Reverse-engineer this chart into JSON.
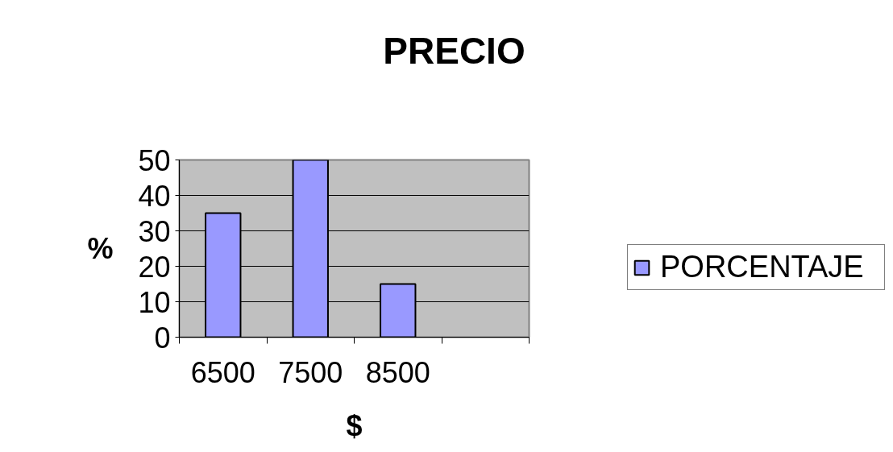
{
  "chart_data": {
    "type": "bar",
    "title": "PRECIO",
    "xlabel": "$",
    "ylabel": "%",
    "categories": [
      "6500",
      "7500",
      "8500",
      null
    ],
    "series": [
      {
        "name": "PORCENTAJE",
        "color": "#9999ff",
        "values": [
          35,
          50,
          15,
          null
        ]
      }
    ],
    "ylim": [
      0,
      50
    ],
    "yticks": [
      0,
      10,
      20,
      30,
      40,
      50
    ],
    "grid": "y",
    "legend": "right"
  }
}
